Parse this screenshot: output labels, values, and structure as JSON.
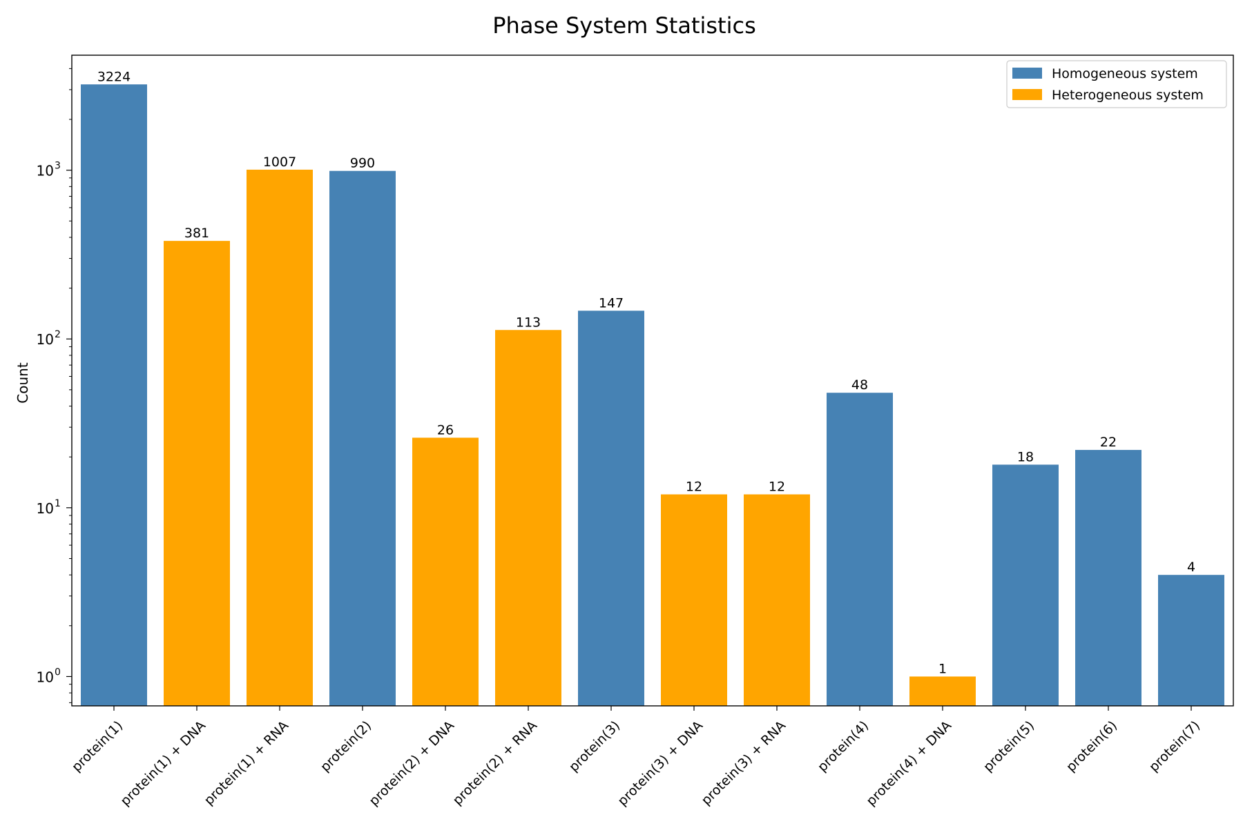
{
  "chart_data": {
    "type": "bar",
    "title": "Phase System Statistics",
    "xlabel": "",
    "ylabel": "Count",
    "yscale": "log",
    "ylim": [
      0.67,
      4800
    ],
    "y_ticks": [
      {
        "value": 1,
        "base": "10",
        "exp": "0"
      },
      {
        "value": 10,
        "base": "10",
        "exp": "1"
      },
      {
        "value": 100,
        "base": "10",
        "exp": "2"
      },
      {
        "value": 1000,
        "base": "10",
        "exp": "3"
      }
    ],
    "grid": false,
    "legend_position": "top-right",
    "categories": [
      "protein(1)",
      "protein(1) + DNA",
      "protein(1) + RNA",
      "protein(2)",
      "protein(2) + DNA",
      "protein(2) + RNA",
      "protein(3)",
      "protein(3) + DNA",
      "protein(3) + RNA",
      "protein(4)",
      "protein(4) + DNA",
      "protein(5)",
      "protein(6)",
      "protein(7)"
    ],
    "values": [
      3224,
      381,
      1007,
      990,
      26,
      113,
      147,
      12,
      12,
      48,
      1,
      18,
      22,
      4
    ],
    "value_labels": [
      "3224",
      "381",
      "1007",
      "990",
      "26",
      "113",
      "147",
      "12",
      "12",
      "48",
      "1",
      "18",
      "22",
      "4"
    ],
    "series_of_bar": [
      "homogeneous",
      "heterogeneous",
      "heterogeneous",
      "homogeneous",
      "heterogeneous",
      "heterogeneous",
      "homogeneous",
      "heterogeneous",
      "heterogeneous",
      "homogeneous",
      "heterogeneous",
      "homogeneous",
      "homogeneous",
      "homogeneous"
    ],
    "series": [
      {
        "key": "homogeneous",
        "name": "Homogeneous system",
        "color": "#4682b4"
      },
      {
        "key": "heterogeneous",
        "name": "Heterogeneous system",
        "color": "#ffa500"
      }
    ]
  }
}
